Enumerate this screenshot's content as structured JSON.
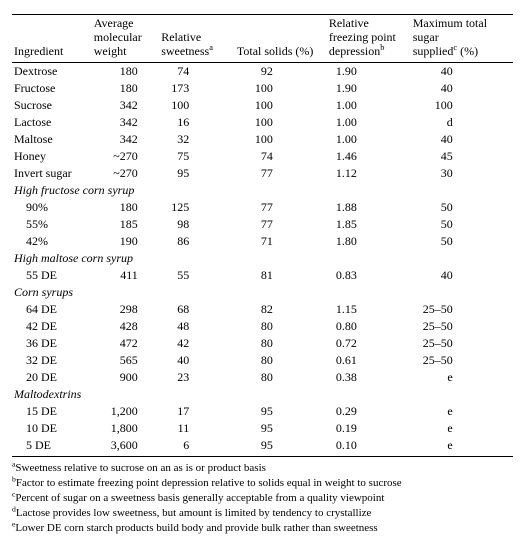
{
  "columns": {
    "ingredient": "Ingredient",
    "avg_mol_weight_l1": "Average",
    "avg_mol_weight_l2": "molecular",
    "avg_mol_weight_l3": "weight",
    "rel_sweet_l1": "Relative",
    "rel_sweet_l2": "sweetness",
    "rel_sweet_sup": "a",
    "total_solids": "Total solids (%)",
    "rel_fp_l1": "Relative",
    "rel_fp_l2": "freezing point",
    "rel_fp_l3": "depression",
    "rel_fp_sup": "b",
    "max_sugar_l1": "Maximum total",
    "max_sugar_l2": "sugar",
    "max_sugar_l3": "supplied",
    "max_sugar_sup": "c",
    "max_sugar_l3b": " (%)"
  },
  "rows": [
    {
      "name": "Dextrose",
      "mw": "180",
      "sw": "74",
      "ts": "92",
      "fp": "1.90",
      "ms": "40"
    },
    {
      "name": "Fructose",
      "mw": "180",
      "sw": "173",
      "ts": "100",
      "fp": "1.90",
      "ms": "40"
    },
    {
      "name": "Sucrose",
      "mw": "342",
      "sw": "100",
      "ts": "100",
      "fp": "1.00",
      "ms": "100"
    },
    {
      "name": "Lactose",
      "mw": "342",
      "sw": "16",
      "ts": "100",
      "fp": "1.00",
      "ms": "d"
    },
    {
      "name": "Maltose",
      "mw": "342",
      "sw": "32",
      "ts": "100",
      "fp": "1.00",
      "ms": "40"
    },
    {
      "name": "Honey",
      "mw": "~270",
      "sw": "75",
      "ts": "74",
      "fp": "1.46",
      "ms": "45"
    },
    {
      "name": "Invert sugar",
      "mw": "~270",
      "sw": "95",
      "ts": "77",
      "fp": "1.12",
      "ms": "30"
    },
    {
      "section": "High fructose corn syrup"
    },
    {
      "name": "90%",
      "indent": true,
      "mw": "180",
      "sw": "125",
      "ts": "77",
      "fp": "1.88",
      "ms": "50"
    },
    {
      "name": "55%",
      "indent": true,
      "mw": "185",
      "sw": "98",
      "ts": "77",
      "fp": "1.85",
      "ms": "50"
    },
    {
      "name": "42%",
      "indent": true,
      "mw": "190",
      "sw": "86",
      "ts": "71",
      "fp": "1.80",
      "ms": "50"
    },
    {
      "section": "High maltose corn syrup"
    },
    {
      "name": "55 DE",
      "indent": true,
      "mw": "411",
      "sw": "55",
      "ts": "81",
      "fp": "0.83",
      "ms": "40"
    },
    {
      "section": "Corn syrups"
    },
    {
      "name": "64 DE",
      "indent": true,
      "mw": "298",
      "sw": "68",
      "ts": "82",
      "fp": "1.15",
      "ms": "25–50"
    },
    {
      "name": "42 DE",
      "indent": true,
      "mw": "428",
      "sw": "48",
      "ts": "80",
      "fp": "0.80",
      "ms": "25–50"
    },
    {
      "name": "36 DE",
      "indent": true,
      "mw": "472",
      "sw": "42",
      "ts": "80",
      "fp": "0.72",
      "ms": "25–50"
    },
    {
      "name": "32 DE",
      "indent": true,
      "mw": "565",
      "sw": "40",
      "ts": "80",
      "fp": "0.61",
      "ms": "25–50"
    },
    {
      "name": "20 DE",
      "indent": true,
      "mw": "900",
      "sw": "23",
      "ts": "80",
      "fp": "0.38",
      "ms": "e"
    },
    {
      "section": "Maltodextrins"
    },
    {
      "name": "15 DE",
      "indent": true,
      "mw": "1,200",
      "sw": "17",
      "ts": "95",
      "fp": "0.29",
      "ms": "e"
    },
    {
      "name": "10 DE",
      "indent": true,
      "mw": "1,800",
      "sw": "11",
      "ts": "95",
      "fp": "0.19",
      "ms": "e"
    },
    {
      "name": "5 DE",
      "indent": true,
      "mw": "3,600",
      "sw": "6",
      "ts": "95",
      "fp": "0.10",
      "ms": "e"
    }
  ],
  "footnotes": {
    "a_sup": "a",
    "a": "Sweetness relative to sucrose on an as is or product basis",
    "b_sup": "b",
    "b": "Factor to estimate freezing point depression relative to solids equal in weight to sucrose",
    "c_sup": "c",
    "c": "Percent of sugar on a sweetness basis generally acceptable from a quality viewpoint",
    "d_sup": "d",
    "d": "Lactose provides low sweetness, but amount is limited by tendency to crystallize",
    "e_sup": "e",
    "e": "Lower DE corn starch products build body and provide bulk rather than sweetness"
  }
}
